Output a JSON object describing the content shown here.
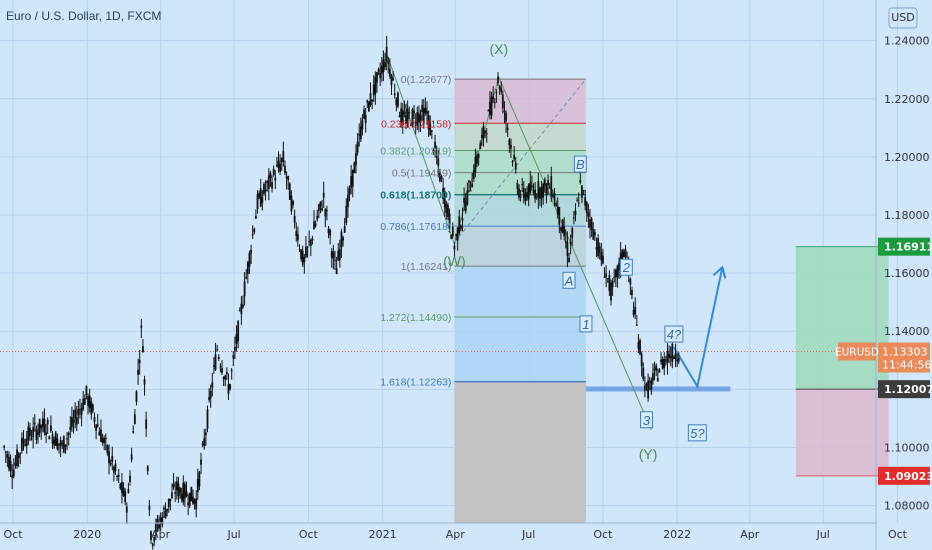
{
  "header": {
    "symbol_title": "Euro / U.S. Dollar, 1D, FXCM"
  },
  "price_axis": {
    "currency": "USD"
  },
  "colors": {
    "background": "#cfe6fb",
    "candle": "#111111",
    "fib_line": "#cc2222",
    "target_zone": "#9fd9bd",
    "stop_zone": "#dcb8cf",
    "wave_label": "#2f6fa7",
    "corrective_label": "#4a8a4f"
  },
  "chart_data": {
    "type": "candlestick",
    "title": "Euro / U.S. Dollar, 1D, FXCM",
    "xlabel": "",
    "ylabel": "",
    "grid": true,
    "ylim": [
      1.074,
      1.254
    ],
    "x_ticks": [
      "Oct",
      "2020",
      "Apr",
      "Jul",
      "Oct",
      "2021",
      "Apr",
      "Jul",
      "Oct",
      "2022",
      "Apr",
      "Jul",
      "Oct"
    ],
    "y_ticks": [
      "1.24000",
      "1.22000",
      "1.20000",
      "1.18000",
      "1.16000",
      "1.14000",
      "1.12000",
      "1.10000",
      "1.08000"
    ],
    "price_path": [
      {
        "date": "2019-09-20",
        "price": 1.1
      },
      {
        "date": "2019-10-01",
        "price": 1.092
      },
      {
        "date": "2019-10-15",
        "price": 1.103
      },
      {
        "date": "2019-11-10",
        "price": 1.108
      },
      {
        "date": "2019-12-01",
        "price": 1.1
      },
      {
        "date": "2019-12-31",
        "price": 1.118
      },
      {
        "date": "2020-02-20",
        "price": 1.08
      },
      {
        "date": "2020-03-09",
        "price": 1.143
      },
      {
        "date": "2020-03-20",
        "price": 1.068
      },
      {
        "date": "2020-04-20",
        "price": 1.086
      },
      {
        "date": "2020-05-15",
        "price": 1.082
      },
      {
        "date": "2020-06-10",
        "price": 1.134
      },
      {
        "date": "2020-06-25",
        "price": 1.12
      },
      {
        "date": "2020-07-30",
        "price": 1.184
      },
      {
        "date": "2020-08-31",
        "price": 1.199
      },
      {
        "date": "2020-09-25",
        "price": 1.163
      },
      {
        "date": "2020-10-20",
        "price": 1.186
      },
      {
        "date": "2020-11-04",
        "price": 1.16
      },
      {
        "date": "2020-12-07",
        "price": 1.212
      },
      {
        "date": "2021-01-06",
        "price": 1.235
      },
      {
        "date": "2021-01-25",
        "price": 1.213
      },
      {
        "date": "2021-02-25",
        "price": 1.215
      },
      {
        "date": "2021-03-31",
        "price": 1.17
      },
      {
        "date": "2021-05-25",
        "price": 1.227
      },
      {
        "date": "2021-06-20",
        "price": 1.187
      },
      {
        "date": "2021-07-30",
        "price": 1.19
      },
      {
        "date": "2021-08-20",
        "price": 1.166
      },
      {
        "date": "2021-09-03",
        "price": 1.19
      },
      {
        "date": "2021-10-12",
        "price": 1.153
      },
      {
        "date": "2021-10-28",
        "price": 1.169
      },
      {
        "date": "2021-11-24",
        "price": 1.119
      },
      {
        "date": "2021-12-20",
        "price": 1.132
      },
      {
        "date": "2022-01-04",
        "price": 1.133
      }
    ],
    "current_price": "1.13303",
    "current_symbol": "EURUSD",
    "countdown": "11:44:56",
    "fib_retracement": [
      {
        "label": "0(1.22677)",
        "price": 1.22677
      },
      {
        "label": "0.236(1.21158)",
        "price": 1.21158
      },
      {
        "label": "0.382(1.20219)",
        "price": 1.20219
      },
      {
        "label": "0.5(1.19459)",
        "price": 1.19459
      },
      {
        "label": "0.618(1.18700)",
        "price": 1.187
      },
      {
        "label": "0.786(1.17618)",
        "price": 1.17618
      },
      {
        "label": "1(1.16241)",
        "price": 1.16241
      },
      {
        "label": "1.272(1.14490)",
        "price": 1.1449
      },
      {
        "label": "1.618(1.12263)",
        "price": 1.12263
      }
    ],
    "wave_labels": [
      {
        "text": "(X)",
        "date": "2021-05-25",
        "price": 1.2355
      },
      {
        "text": "(W)",
        "date": "2021-03-31",
        "price": 1.1625
      },
      {
        "text": "A",
        "date": "2021-08-20",
        "price": 1.1565
      },
      {
        "text": "B",
        "date": "2021-09-03",
        "price": 1.1965
      },
      {
        "text": "1",
        "date": "2021-09-10",
        "price": 1.1415
      },
      {
        "text": "2",
        "date": "2021-10-30",
        "price": 1.161
      },
      {
        "text": "3",
        "date": "2021-11-24",
        "price": 1.1085
      },
      {
        "text": "4?",
        "date": "2021-12-28",
        "price": 1.138
      },
      {
        "text": "5?",
        "date": "2022-01-26",
        "price": 1.104
      },
      {
        "text": "(Y)",
        "date": "2021-11-26",
        "price": 1.096
      }
    ],
    "position": {
      "entry": "1.12007",
      "target": "1.16911",
      "stop": "1.09023"
    }
  }
}
